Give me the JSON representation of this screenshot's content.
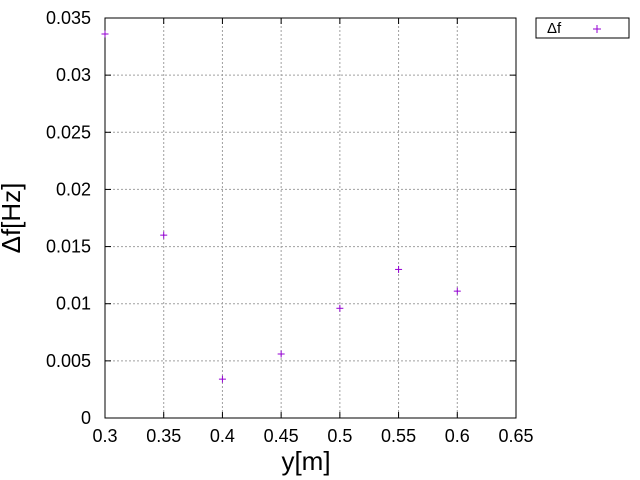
{
  "chart_data": {
    "type": "scatter",
    "title": "",
    "xlabel": "y[m]",
    "ylabel": "Δf[Hz]",
    "xlim": [
      0.3,
      0.65
    ],
    "ylim": [
      0,
      0.035
    ],
    "x_ticks": [
      "0.3",
      "0.35",
      "0.4",
      "0.45",
      "0.5",
      "0.55",
      "0.6",
      "0.65"
    ],
    "y_ticks": [
      "0",
      "0.005",
      "0.01",
      "0.015",
      "0.02",
      "0.025",
      "0.03",
      "0.035"
    ],
    "grid": true,
    "legend_position": "outside top-right",
    "series": [
      {
        "name": "Δf",
        "marker": "+",
        "color": "#9400d3",
        "x": [
          0.3,
          0.35,
          0.4,
          0.45,
          0.5,
          0.55,
          0.6
        ],
        "y": [
          0.0336,
          0.016,
          0.0034,
          0.0056,
          0.0096,
          0.013,
          0.0111
        ]
      }
    ]
  }
}
